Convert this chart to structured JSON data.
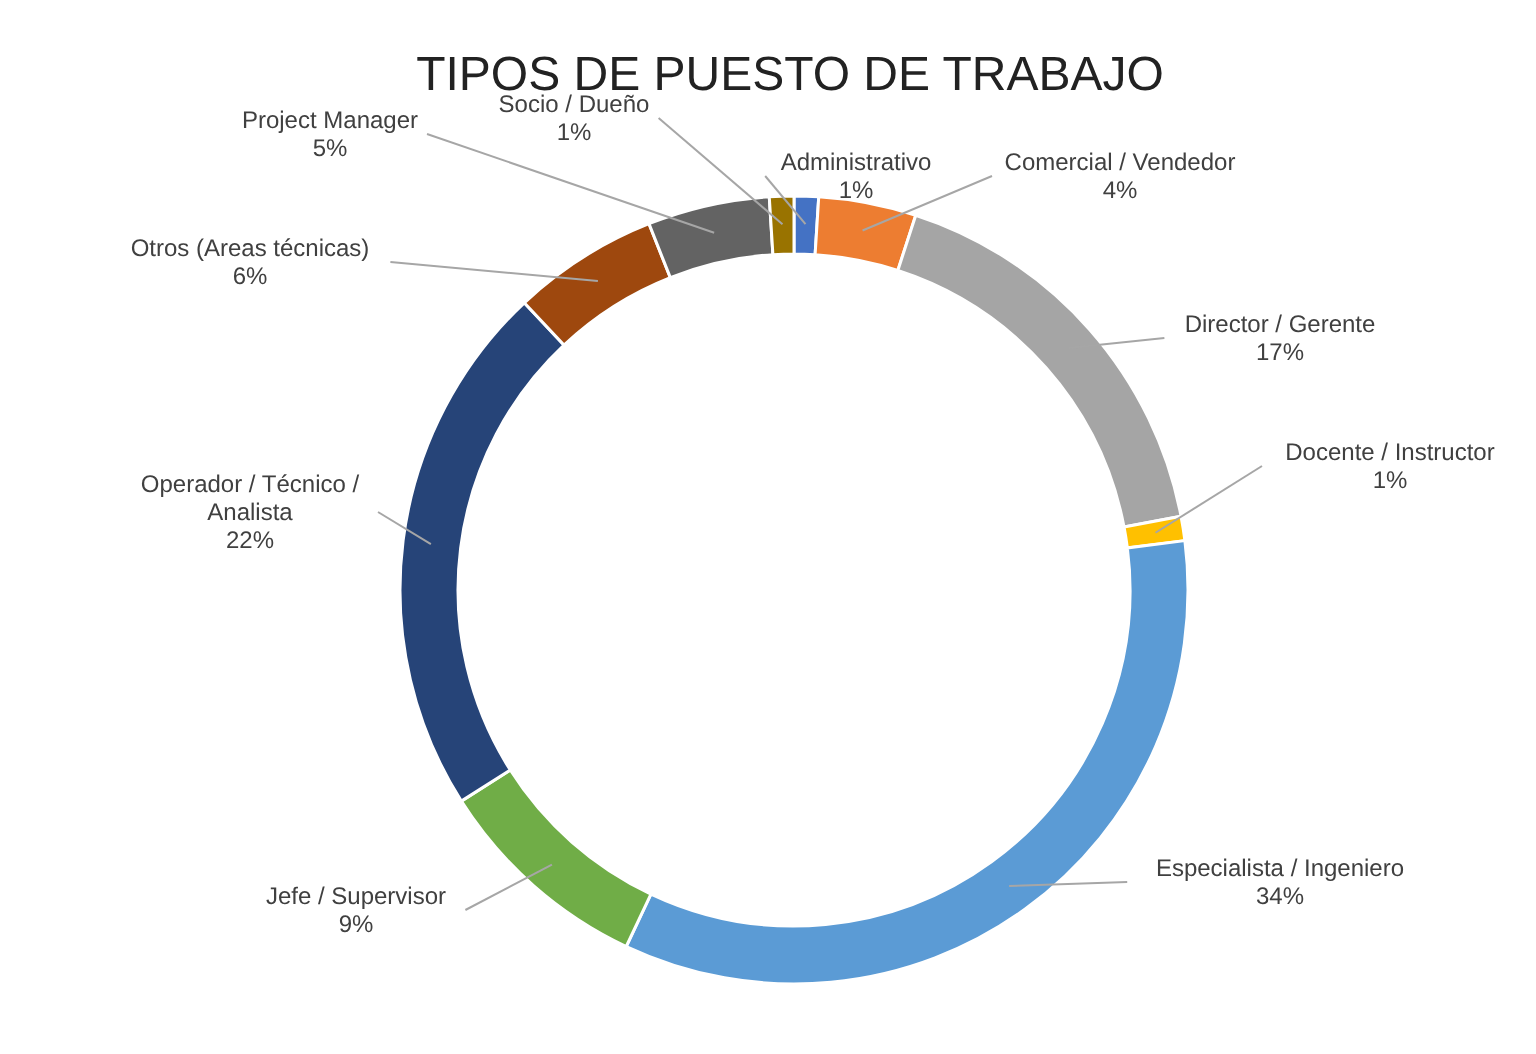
{
  "chart_data": {
    "type": "donut",
    "title": "TIPOS DE PUESTO DE TRABAJO",
    "categories": [
      "Administrativo",
      "Comercial / Vendedor",
      "Director / Gerente",
      "Docente / Instructor",
      "Especialista / Ingeniero",
      "Jefe / Supervisor",
      "Operador / Técnico / Analista",
      "Otros (Areas técnicas)",
      "Project Manager",
      "Socio / Dueño"
    ],
    "values": [
      1,
      4,
      17,
      1,
      34,
      9,
      22,
      6,
      5,
      1
    ],
    "value_labels": [
      "1%",
      "4%",
      "17%",
      "1%",
      "34%",
      "9%",
      "22%",
      "6%",
      "5%",
      "1%"
    ],
    "colors": [
      "#4472c4",
      "#ed7d31",
      "#a5a5a5",
      "#ffc000",
      "#5b9bd5",
      "#70ad47",
      "#264478",
      "#9e480e",
      "#636363",
      "#997300"
    ]
  }
}
